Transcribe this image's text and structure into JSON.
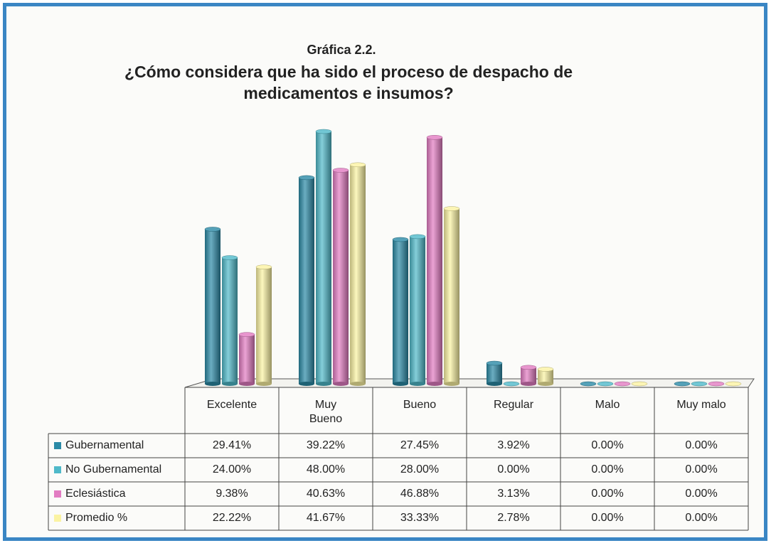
{
  "chart_data": {
    "type": "bar3d",
    "title": "Gráfica 2.2.",
    "subtitle": "¿Cómo considera que ha sido el proceso de despacho de medicamentos e insumos?",
    "categories": [
      "Excelente",
      "Muy Bueno",
      "Bueno",
      "Regular",
      "Malo",
      "Muy malo"
    ],
    "series": [
      {
        "name": "Gubernamental",
        "color": "#2b8aa6",
        "values": [
          29.41,
          39.22,
          27.45,
          3.92,
          0,
          0
        ],
        "value_labels": [
          "29.41%",
          "39.22%",
          "27.45%",
          "3.92%",
          "0.00%",
          "0.00%"
        ]
      },
      {
        "name": "No Gubernamental",
        "color": "#4fb9c9",
        "values": [
          24.0,
          48.0,
          28.0,
          0,
          0,
          0
        ],
        "value_labels": [
          "24.00%",
          "48.00%",
          "28.00%",
          "0.00%",
          "0.00%",
          "0.00%"
        ]
      },
      {
        "name": "Eclesiástica",
        "color": "#e27cc2",
        "values": [
          9.38,
          40.63,
          46.88,
          3.13,
          0,
          0
        ],
        "value_labels": [
          "9.38%",
          "40.63%",
          "46.88%",
          "3.13%",
          "0.00%",
          "0.00%"
        ]
      },
      {
        "name": "Promedio %",
        "color": "#fbf3a2",
        "values": [
          22.22,
          41.67,
          33.33,
          2.78,
          0,
          0
        ],
        "value_labels": [
          "22.22%",
          "41.67%",
          "33.33%",
          "2.78%",
          "0.00%",
          "0.00%"
        ]
      }
    ]
  }
}
